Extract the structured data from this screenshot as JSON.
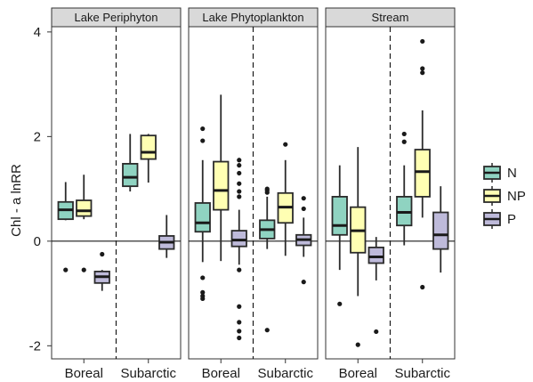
{
  "chart_data": {
    "type": "boxplot",
    "ylabel": "Chl - a lnRR",
    "ylim": [
      -2.25,
      4.1
    ],
    "y_ticks": [
      -2,
      0,
      2,
      4
    ],
    "y_tick_labels": [
      "-2",
      "0",
      "2",
      "4"
    ],
    "reference_line_y": 0,
    "legend": {
      "position": "right",
      "entries": [
        {
          "key": "N",
          "label": "N",
          "color": "#8fd3c1"
        },
        {
          "key": "NP",
          "label": "NP",
          "color": "#ffffb3"
        },
        {
          "key": "P",
          "label": "P",
          "color": "#bebada"
        }
      ]
    },
    "panels": [
      {
        "title": "Lake Periphyton",
        "groups": [
          {
            "label": "Boreal",
            "boxes": [
              {
                "series": "N",
                "whisker_low": 0.4,
                "q1": 0.42,
                "median": 0.6,
                "q3": 0.75,
                "whisker_high": 1.13,
                "outliers": [
                  -0.55
                ]
              },
              {
                "series": "NP",
                "whisker_low": 0.42,
                "q1": 0.48,
                "median": 0.58,
                "q3": 0.78,
                "whisker_high": 1.27,
                "outliers": [
                  -0.55
                ]
              },
              {
                "series": "P",
                "whisker_low": -0.95,
                "q1": -0.8,
                "median": -0.68,
                "q3": -0.58,
                "whisker_high": -0.55,
                "outliers": [
                  -0.25
                ]
              }
            ]
          },
          {
            "label": "Subarctic",
            "boxes": [
              {
                "series": "N",
                "whisker_low": 0.95,
                "q1": 1.05,
                "median": 1.22,
                "q3": 1.48,
                "whisker_high": 2.05,
                "outliers": []
              },
              {
                "series": "NP",
                "whisker_low": 1.12,
                "q1": 1.57,
                "median": 1.7,
                "q3": 2.02,
                "whisker_high": 2.05,
                "outliers": []
              },
              {
                "series": "P",
                "whisker_low": -0.32,
                "q1": -0.15,
                "median": -0.02,
                "q3": 0.1,
                "whisker_high": 0.5,
                "outliers": []
              }
            ]
          }
        ]
      },
      {
        "title": "Lake Phytoplankton",
        "groups": [
          {
            "label": "Boreal",
            "boxes": [
              {
                "series": "N",
                "whisker_low": -0.4,
                "q1": 0.18,
                "median": 0.35,
                "q3": 0.73,
                "whisker_high": 1.55,
                "outliers": [
                  1.92,
                  2.15,
                  -0.7,
                  -0.98,
                  -1.05,
                  -1.1
                ]
              },
              {
                "series": "NP",
                "whisker_low": -0.38,
                "q1": 0.6,
                "median": 0.97,
                "q3": 1.52,
                "whisker_high": 2.8,
                "outliers": []
              },
              {
                "series": "P",
                "whisker_low": -0.45,
                "q1": -0.1,
                "median": 0.02,
                "q3": 0.2,
                "whisker_high": 0.6,
                "outliers": [
                  1.55,
                  1.45,
                  1.3,
                  1.1,
                  0.95,
                  0.85,
                  -0.55,
                  -1.25,
                  -1.55,
                  -1.72,
                  -1.85
                ]
              }
            ]
          },
          {
            "label": "Subarctic",
            "boxes": [
              {
                "series": "N",
                "whisker_low": -0.15,
                "q1": 0.05,
                "median": 0.22,
                "q3": 0.4,
                "whisker_high": 0.85,
                "outliers": [
                  1.0,
                  0.97,
                  0.93,
                  -1.7
                ]
              },
              {
                "series": "NP",
                "whisker_low": -0.28,
                "q1": 0.35,
                "median": 0.65,
                "q3": 0.92,
                "whisker_high": 1.55,
                "outliers": [
                  1.85
                ]
              },
              {
                "series": "P",
                "whisker_low": -0.3,
                "q1": -0.08,
                "median": 0.03,
                "q3": 0.12,
                "whisker_high": 0.45,
                "outliers": [
                  0.82,
                  0.62,
                  -0.78
                ]
              }
            ]
          }
        ]
      },
      {
        "title": "Stream",
        "groups": [
          {
            "label": "Boreal",
            "boxes": [
              {
                "series": "N",
                "whisker_low": -0.55,
                "q1": 0.12,
                "median": 0.3,
                "q3": 0.85,
                "whisker_high": 1.45,
                "outliers": [
                  -1.2
                ]
              },
              {
                "series": "NP",
                "whisker_low": -1.05,
                "q1": -0.22,
                "median": 0.2,
                "q3": 0.65,
                "whisker_high": 1.8,
                "outliers": [
                  -1.98
                ]
              },
              {
                "series": "P",
                "whisker_low": -0.75,
                "q1": -0.42,
                "median": -0.3,
                "q3": -0.12,
                "whisker_high": 0.08,
                "outliers": [
                  -1.73
                ]
              }
            ]
          },
          {
            "label": "Subarctic",
            "boxes": [
              {
                "series": "N",
                "whisker_low": -0.08,
                "q1": 0.3,
                "median": 0.55,
                "q3": 0.85,
                "whisker_high": 1.45,
                "outliers": [
                  2.05,
                  1.9
                ]
              },
              {
                "series": "NP",
                "whisker_low": 0.45,
                "q1": 0.85,
                "median": 1.33,
                "q3": 1.75,
                "whisker_high": 2.5,
                "outliers": [
                  3.82,
                  3.3,
                  3.22,
                  -0.88
                ]
              },
              {
                "series": "P",
                "whisker_low": -0.6,
                "q1": -0.15,
                "median": 0.12,
                "q3": 0.55,
                "whisker_high": 1.05,
                "outliers": []
              }
            ]
          }
        ]
      }
    ]
  }
}
